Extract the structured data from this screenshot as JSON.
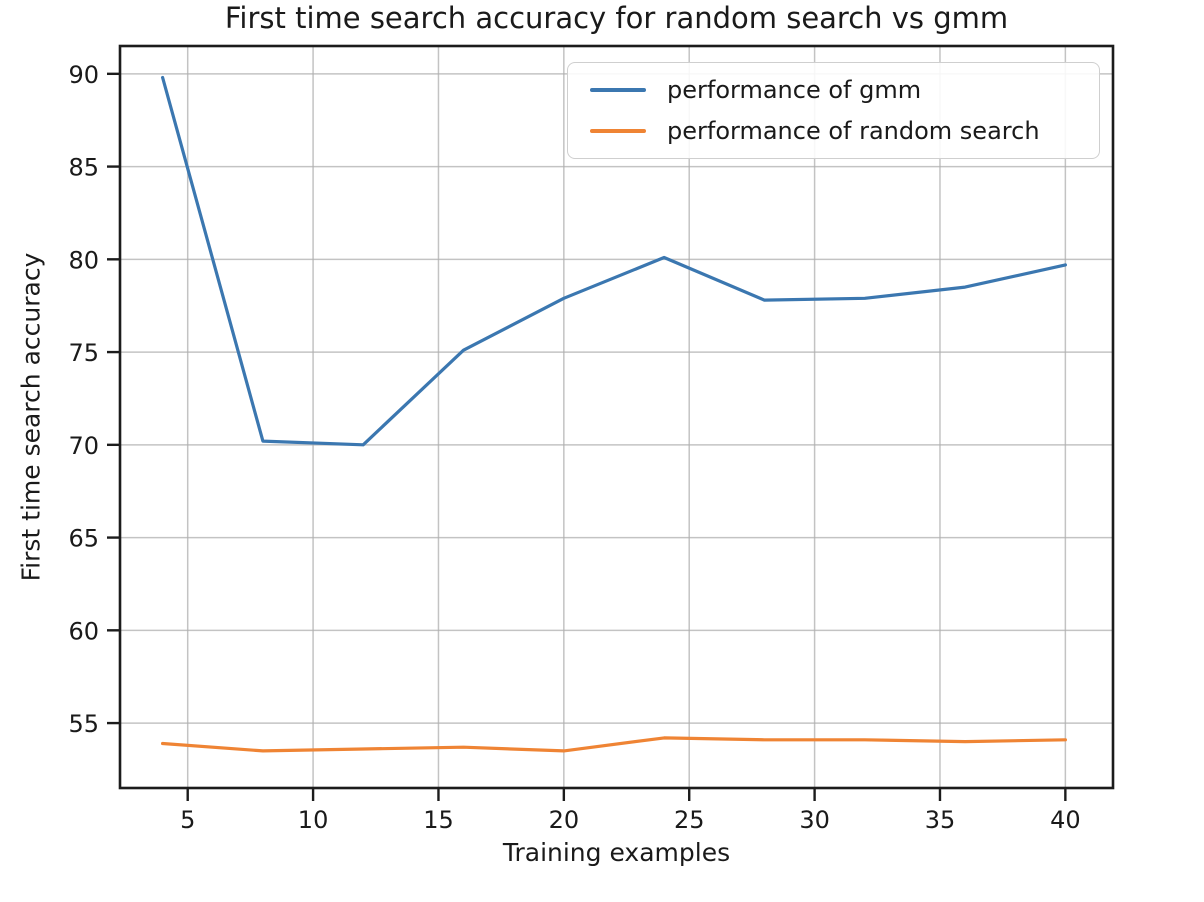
{
  "chart_data": {
    "type": "line",
    "title": "First time search accuracy for random search vs gmm",
    "xlabel": "Training examples",
    "ylabel": "First time search accuracy",
    "x": [
      4,
      8,
      12,
      16,
      20,
      24,
      28,
      32,
      36,
      40
    ],
    "series": [
      {
        "name": "performance of gmm",
        "color": "#3b77b0",
        "values": [
          89.8,
          70.2,
          70.0,
          75.1,
          77.9,
          80.1,
          77.8,
          77.9,
          78.5,
          79.7
        ]
      },
      {
        "name": "performance of random search",
        "color": "#ef8434",
        "values": [
          53.9,
          53.5,
          53.6,
          53.7,
          53.5,
          54.2,
          54.1,
          54.1,
          54.0,
          54.1
        ]
      }
    ],
    "xlim": [
      2.3,
      41.9
    ],
    "ylim": [
      51.5,
      91.5
    ],
    "xticks": [
      5,
      10,
      15,
      20,
      25,
      30,
      35,
      40
    ],
    "yticks": [
      55,
      60,
      65,
      70,
      75,
      80,
      85,
      90
    ],
    "grid": true,
    "legend_position": "upper right"
  },
  "style": {
    "background": "#ffffff",
    "spine_color": "#1c1c1c",
    "grid_color": "#b0b0b0",
    "tick_color": "#1c1c1c",
    "text_color": "#1a1a1a"
  }
}
